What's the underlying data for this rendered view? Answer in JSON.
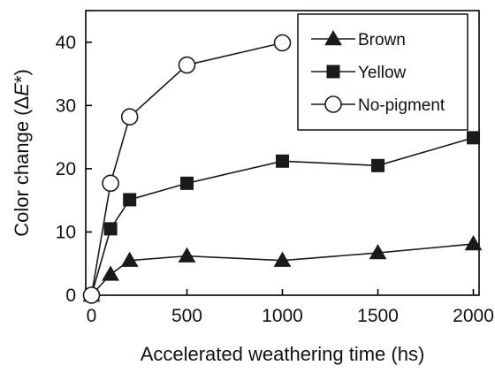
{
  "chart_data": {
    "type": "line",
    "xlabel": "Accelerated weathering time (hs)",
    "ylabel_prefix": "Color change (",
    "ylabel_delta": "Δ",
    "ylabel_e": "E",
    "ylabel_suffix": "*)",
    "xlim": [
      -30,
      2030
    ],
    "ylim": [
      0,
      45
    ],
    "xticks": [
      0,
      500,
      1000,
      1500,
      2000
    ],
    "yticks": [
      0,
      10,
      20,
      30,
      40
    ],
    "grid": false,
    "legend_position": "top-right",
    "series": [
      {
        "name": "Brown",
        "marker": "triangle",
        "color": "#1a1a1a",
        "x": [
          0,
          100,
          200,
          500,
          1000,
          1500,
          2000
        ],
        "y": [
          0,
          3.3,
          5.5,
          6.2,
          5.5,
          6.7,
          8.1
        ]
      },
      {
        "name": "Yellow",
        "marker": "square",
        "color": "#1a1a1a",
        "x": [
          0,
          100,
          200,
          500,
          1000,
          1500,
          2000
        ],
        "y": [
          0,
          10.5,
          15.1,
          17.7,
          21.2,
          20.5,
          24.9
        ]
      },
      {
        "name": "No-pigment",
        "marker": "circle-open",
        "color": "#1a1a1a",
        "x": [
          0,
          100,
          200,
          500,
          1000
        ],
        "y": [
          0,
          17.7,
          28.2,
          36.4,
          39.9
        ]
      }
    ]
  }
}
